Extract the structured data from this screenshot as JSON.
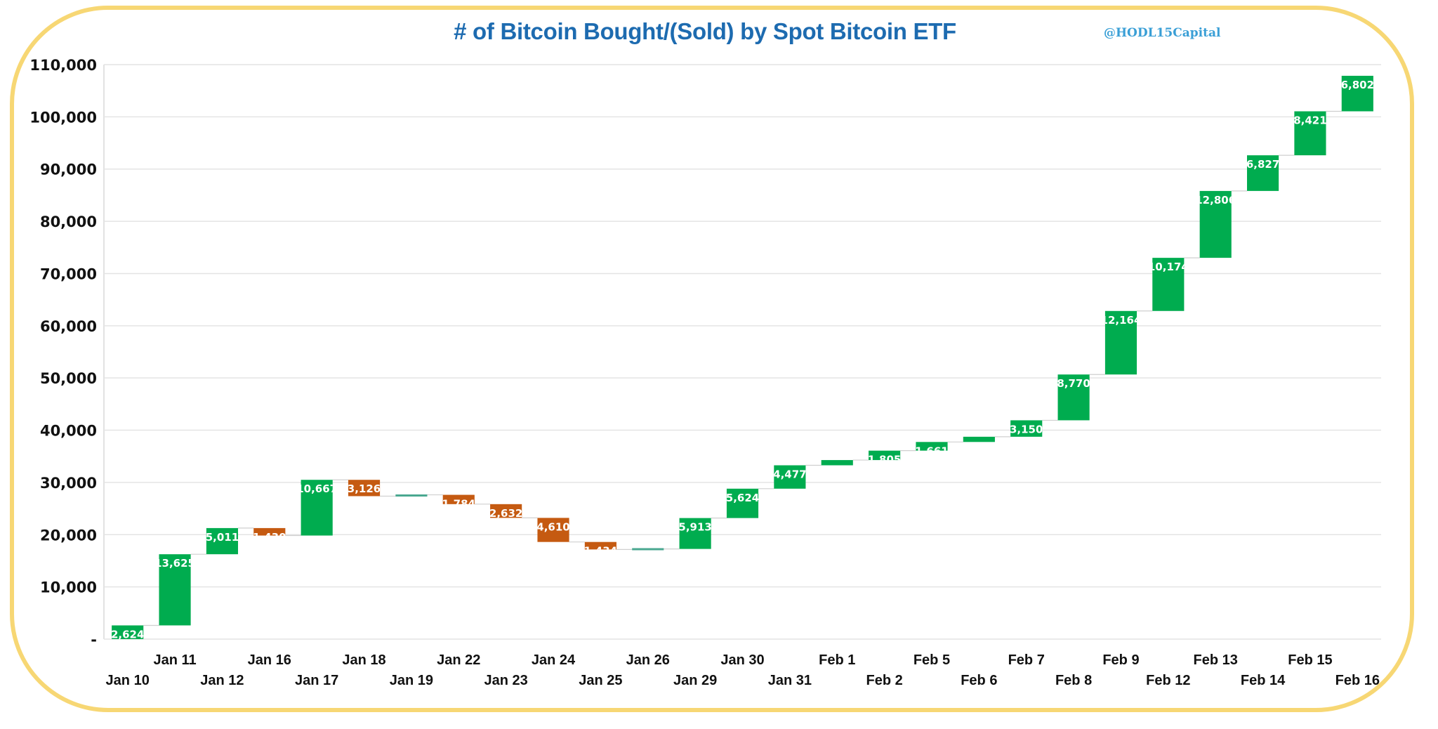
{
  "chart_data": {
    "type": "bar",
    "subtype": "waterfall",
    "title": "# of Bitcoin Bought/(Sold) by Spot Bitcoin ETF",
    "watermark": "@HODL15Capital",
    "xlabel": "",
    "ylabel": "",
    "ylim": [
      0,
      110000
    ],
    "yticks": [
      0,
      10000,
      20000,
      30000,
      40000,
      50000,
      60000,
      70000,
      80000,
      90000,
      100000,
      110000
    ],
    "ytick_labels": [
      "-",
      "10,000",
      "20,000",
      "30,000",
      "40,000",
      "50,000",
      "60,000",
      "70,000",
      "80,000",
      "90,000",
      "100,000",
      "110,000"
    ],
    "grid": true,
    "legend": "none",
    "categories": [
      "Jan 10",
      "Jan 11",
      "Jan 12",
      "Jan 16",
      "Jan 17",
      "Jan 18",
      "Jan 19",
      "Jan 22",
      "Jan 23",
      "Jan 24",
      "Jan 25",
      "Jan 26",
      "Jan 29",
      "Jan 30",
      "Jan 31",
      "Feb 1",
      "Feb 2",
      "Feb 5",
      "Feb 6",
      "Feb 7",
      "Feb 8",
      "Feb 9",
      "Feb 12",
      "Feb 13",
      "Feb 14",
      "Feb 15",
      "Feb 16"
    ],
    "values": [
      2624,
      13625,
      5011,
      -1430,
      10667,
      -3126,
      255,
      -1784,
      -2632,
      -4610,
      -1434,
      100,
      5913,
      5624,
      4477,
      1000,
      1805,
      1661,
      1000,
      3150,
      8770,
      12164,
      10174,
      12806,
      6827,
      8421,
      6802
    ],
    "data_labels": [
      "2,624",
      "13,625",
      "5,011",
      "(1,430)",
      "10,667",
      "(3,126)",
      "",
      "(1,784)",
      "(2,632)",
      "(4,610)",
      "(1,434)",
      "",
      "5,913",
      "5,624",
      "4,477",
      "",
      "1,805",
      "1,661",
      "",
      "3,150",
      "8,770",
      "12,164",
      "10,174",
      "12,806",
      "6,827",
      "8,421",
      "6,802"
    ],
    "colors": {
      "increase": "#00ac4f",
      "decrease": "#c55a11",
      "near_zero": "#4aa890",
      "title": "#1d6bb0",
      "watermark": "#3a9fd6",
      "frame": "#f7d774",
      "gridline": "#e4e4e4"
    }
  }
}
